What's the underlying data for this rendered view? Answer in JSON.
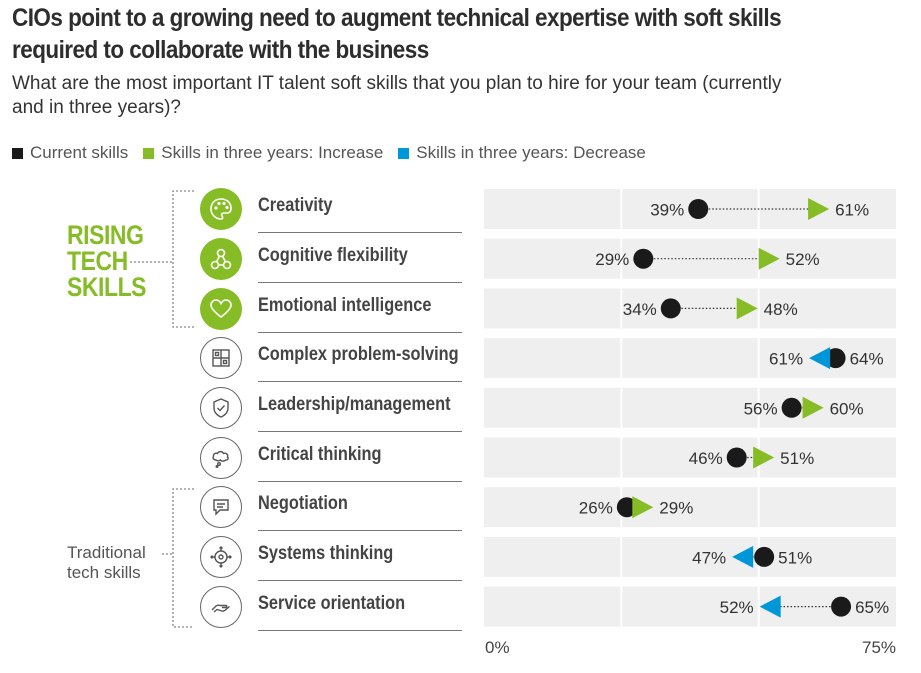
{
  "header": {
    "title_line1": "CIOs point to a growing need to augment technical expertise with soft skills",
    "title_line2": "required to collaborate with the business",
    "subtitle_line1": "What are the most important IT talent soft skills that you plan to hire for your team (currently",
    "subtitle_line2": "and in three years)?"
  },
  "legend": [
    {
      "label": "Current skills",
      "color": "#1a1a1a"
    },
    {
      "label": "Skills in three years: Increase",
      "color": "#86bc25"
    },
    {
      "label": "Skills in three years: Decrease",
      "color": "#0097d8"
    }
  ],
  "groups": {
    "rising": [
      "RISING",
      "TECH",
      "SKILLS"
    ],
    "traditional": [
      "Traditional",
      "tech skills"
    ]
  },
  "colors": {
    "rising_green": "#86bc25",
    "increase": "#86bc25",
    "decrease": "#0097d8",
    "current": "#1a1a1a",
    "bar_bg": "#efefef"
  },
  "skills": [
    {
      "label": "Creativity",
      "icon": "palette-icon",
      "group": "rising"
    },
    {
      "label": "Cognitive flexibility",
      "icon": "network-nodes-icon",
      "group": "rising"
    },
    {
      "label": "Emotional intelligence",
      "icon": "heart-icon",
      "group": "rising"
    },
    {
      "label": "Complex problem-solving",
      "icon": "puzzle-grid-icon",
      "group": "middle"
    },
    {
      "label": "Leadership/management",
      "icon": "shield-check-icon",
      "group": "middle"
    },
    {
      "label": "Critical thinking",
      "icon": "thought-cloud-icon",
      "group": "middle"
    },
    {
      "label": "Negotiation",
      "icon": "speech-bubble-icon",
      "group": "traditional"
    },
    {
      "label": "Systems thinking",
      "icon": "target-arrows-icon",
      "group": "traditional"
    },
    {
      "label": "Service orientation",
      "icon": "handshake-icon",
      "group": "traditional"
    }
  ],
  "chart_data": {
    "type": "dumbbell",
    "xlim": [
      0,
      75
    ],
    "x_tick_labels": [
      "0%",
      "75%"
    ],
    "grid": "vertical lines at 25% and 50%",
    "categories": [
      "Creativity",
      "Cognitive flexibility",
      "Emotional intelligence",
      "Complex problem-solving",
      "Leadership/management",
      "Critical thinking",
      "Negotiation",
      "Systems thinking",
      "Service orientation"
    ],
    "series": [
      {
        "name": "Current skills",
        "values": [
          39,
          29,
          34,
          64,
          56,
          46,
          26,
          51,
          65
        ]
      },
      {
        "name": "Skills in three years",
        "values": [
          61,
          52,
          48,
          61,
          60,
          51,
          29,
          47,
          52
        ]
      }
    ],
    "labels_current": [
      "39%",
      "29%",
      "34%",
      "64%",
      "56%",
      "46%",
      "26%",
      "51%",
      "65%"
    ],
    "labels_future": [
      "61%",
      "52%",
      "48%",
      "61%",
      "60%",
      "51%",
      "29%",
      "47%",
      "52%"
    ]
  }
}
